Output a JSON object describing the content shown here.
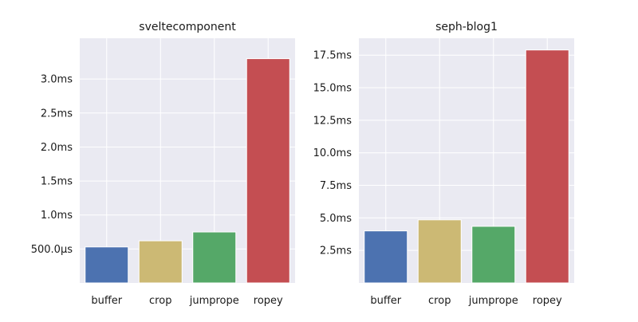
{
  "chart_data": [
    {
      "type": "bar",
      "title": "sveltecomponent",
      "categories": [
        "buffer",
        "crop",
        "jumprope",
        "ropey"
      ],
      "values": [
        0.53,
        0.62,
        0.75,
        3.3
      ],
      "value_unit": "ms",
      "ylim": [
        0.0,
        3.6
      ],
      "yticks": [
        0.5,
        1.0,
        1.5,
        2.0,
        2.5,
        3.0
      ],
      "ytick_labels": [
        "500.0µs",
        "1.0ms",
        "1.5ms",
        "2.0ms",
        "2.5ms",
        "3.0ms"
      ],
      "xlabel": "",
      "ylabel": "",
      "grid": true
    },
    {
      "type": "bar",
      "title": "seph-blog1",
      "categories": [
        "buffer",
        "crop",
        "jumprope",
        "ropey"
      ],
      "values": [
        4.0,
        4.85,
        4.35,
        17.9
      ],
      "value_unit": "ms",
      "ylim": [
        0.0,
        18.8
      ],
      "yticks": [
        2.5,
        5.0,
        7.5,
        10.0,
        12.5,
        15.0,
        17.5
      ],
      "ytick_labels": [
        "2.5ms",
        "5.0ms",
        "7.5ms",
        "10.0ms",
        "12.5ms",
        "15.0ms",
        "17.5ms"
      ],
      "xlabel": "",
      "ylabel": "",
      "grid": true
    }
  ],
  "colors": {
    "plot_background": "#eaeaf2",
    "grid": "#ffffff",
    "bars": [
      "#4c72b0",
      "#ccb974",
      "#55a868",
      "#c44e52"
    ]
  }
}
